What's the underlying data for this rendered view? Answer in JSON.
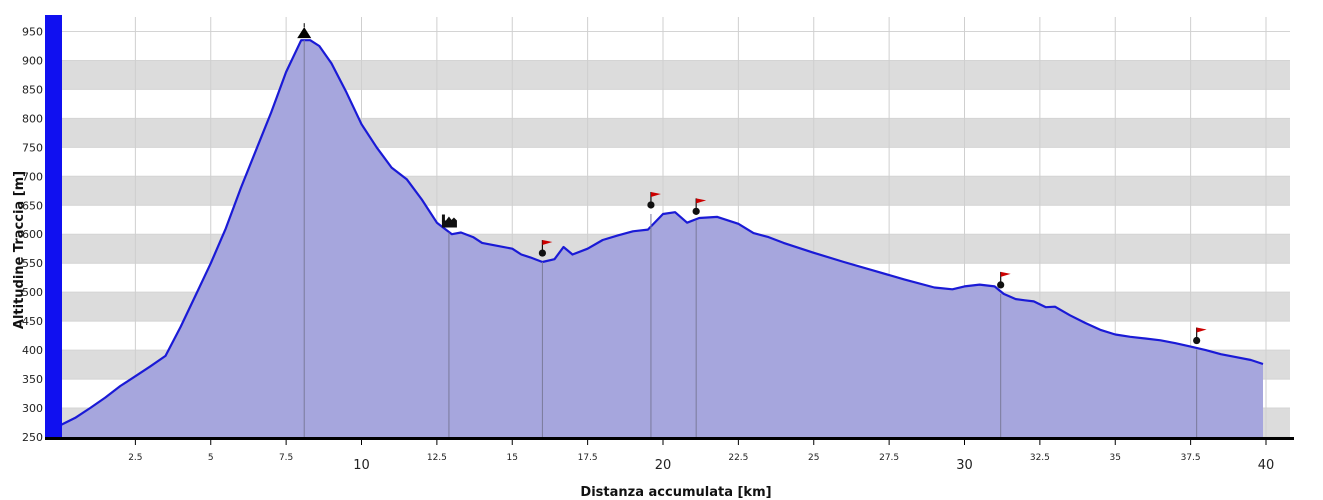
{
  "chart_data": {
    "type": "area",
    "xlabel": "Distanza accumulata [km]",
    "ylabel": "Altitudine Traccia [m]",
    "xlim": [
      0,
      40
    ],
    "ylim": [
      250,
      975
    ],
    "x_ticks": [
      2.5,
      5,
      7.5,
      10,
      12.5,
      15,
      17.5,
      20,
      22.5,
      25,
      27.5,
      30,
      32.5,
      35,
      37.5,
      40
    ],
    "x_major_ticks": [
      10,
      20,
      30,
      40
    ],
    "y_ticks": [
      250,
      300,
      350,
      400,
      450,
      500,
      550,
      600,
      650,
      700,
      750,
      800,
      850,
      900,
      950
    ],
    "grid": true,
    "series": [
      {
        "x": [
          0,
          0.5,
          1,
          1.5,
          2,
          2.5,
          3,
          3.5,
          4,
          4.5,
          5,
          5.5,
          6,
          6.5,
          7,
          7.5,
          8,
          8.3,
          8.6,
          9,
          9.5,
          10,
          10.5,
          11,
          11.5,
          12,
          12.5,
          13,
          13.3,
          13.7,
          14,
          14.5,
          15,
          15.3,
          15.6,
          16,
          16.4,
          16.7,
          17,
          17.5,
          18,
          18.5,
          19,
          19.5,
          20,
          20.4,
          20.8,
          21.2,
          21.8,
          22.5,
          23,
          23.5,
          24,
          25,
          26,
          27,
          28,
          29,
          29.6,
          30,
          30.5,
          31,
          31.3,
          31.7,
          32,
          32.3,
          32.7,
          33,
          33.5,
          34,
          34.5,
          35,
          35.5,
          36,
          36.5,
          37,
          37.5,
          38,
          38.5,
          39,
          39.5,
          39.9
        ],
        "y": [
          270,
          283,
          300,
          318,
          338,
          355,
          372,
          390,
          440,
          495,
          550,
          610,
          680,
          745,
          810,
          880,
          935,
          935,
          925,
          895,
          845,
          790,
          750,
          715,
          695,
          660,
          620,
          600,
          603,
          595,
          585,
          580,
          575,
          565,
          560,
          552,
          557,
          578,
          565,
          575,
          590,
          598,
          605,
          608,
          635,
          638,
          620,
          628,
          630,
          618,
          602,
          595,
          585,
          568,
          552,
          537,
          522,
          508,
          505,
          510,
          513,
          510,
          497,
          488,
          486,
          484,
          474,
          475,
          460,
          447,
          435,
          427,
          423,
          420,
          417,
          412,
          406,
          400,
          393,
          388,
          383,
          376
        ]
      }
    ],
    "markers": [
      {
        "icon": "summit-icon",
        "x": 8.1,
        "y": 935
      },
      {
        "icon": "village-icon",
        "x": 12.9,
        "y": 603
      },
      {
        "icon": "flag-icon",
        "x": 16,
        "y": 552
      },
      {
        "icon": "flag-icon",
        "x": 19.6,
        "y": 635
      },
      {
        "icon": "flag-icon",
        "x": 21.1,
        "y": 624
      },
      {
        "icon": "flag-icon",
        "x": 31.2,
        "y": 497
      },
      {
        "icon": "flag-icon",
        "x": 37.7,
        "y": 401
      }
    ],
    "colors": {
      "line": "#1a1ad6",
      "fill": "#a6a6dd",
      "band": "#dcdcdc",
      "axis_bar": "#1010f0",
      "flag": "#cc0000"
    }
  }
}
